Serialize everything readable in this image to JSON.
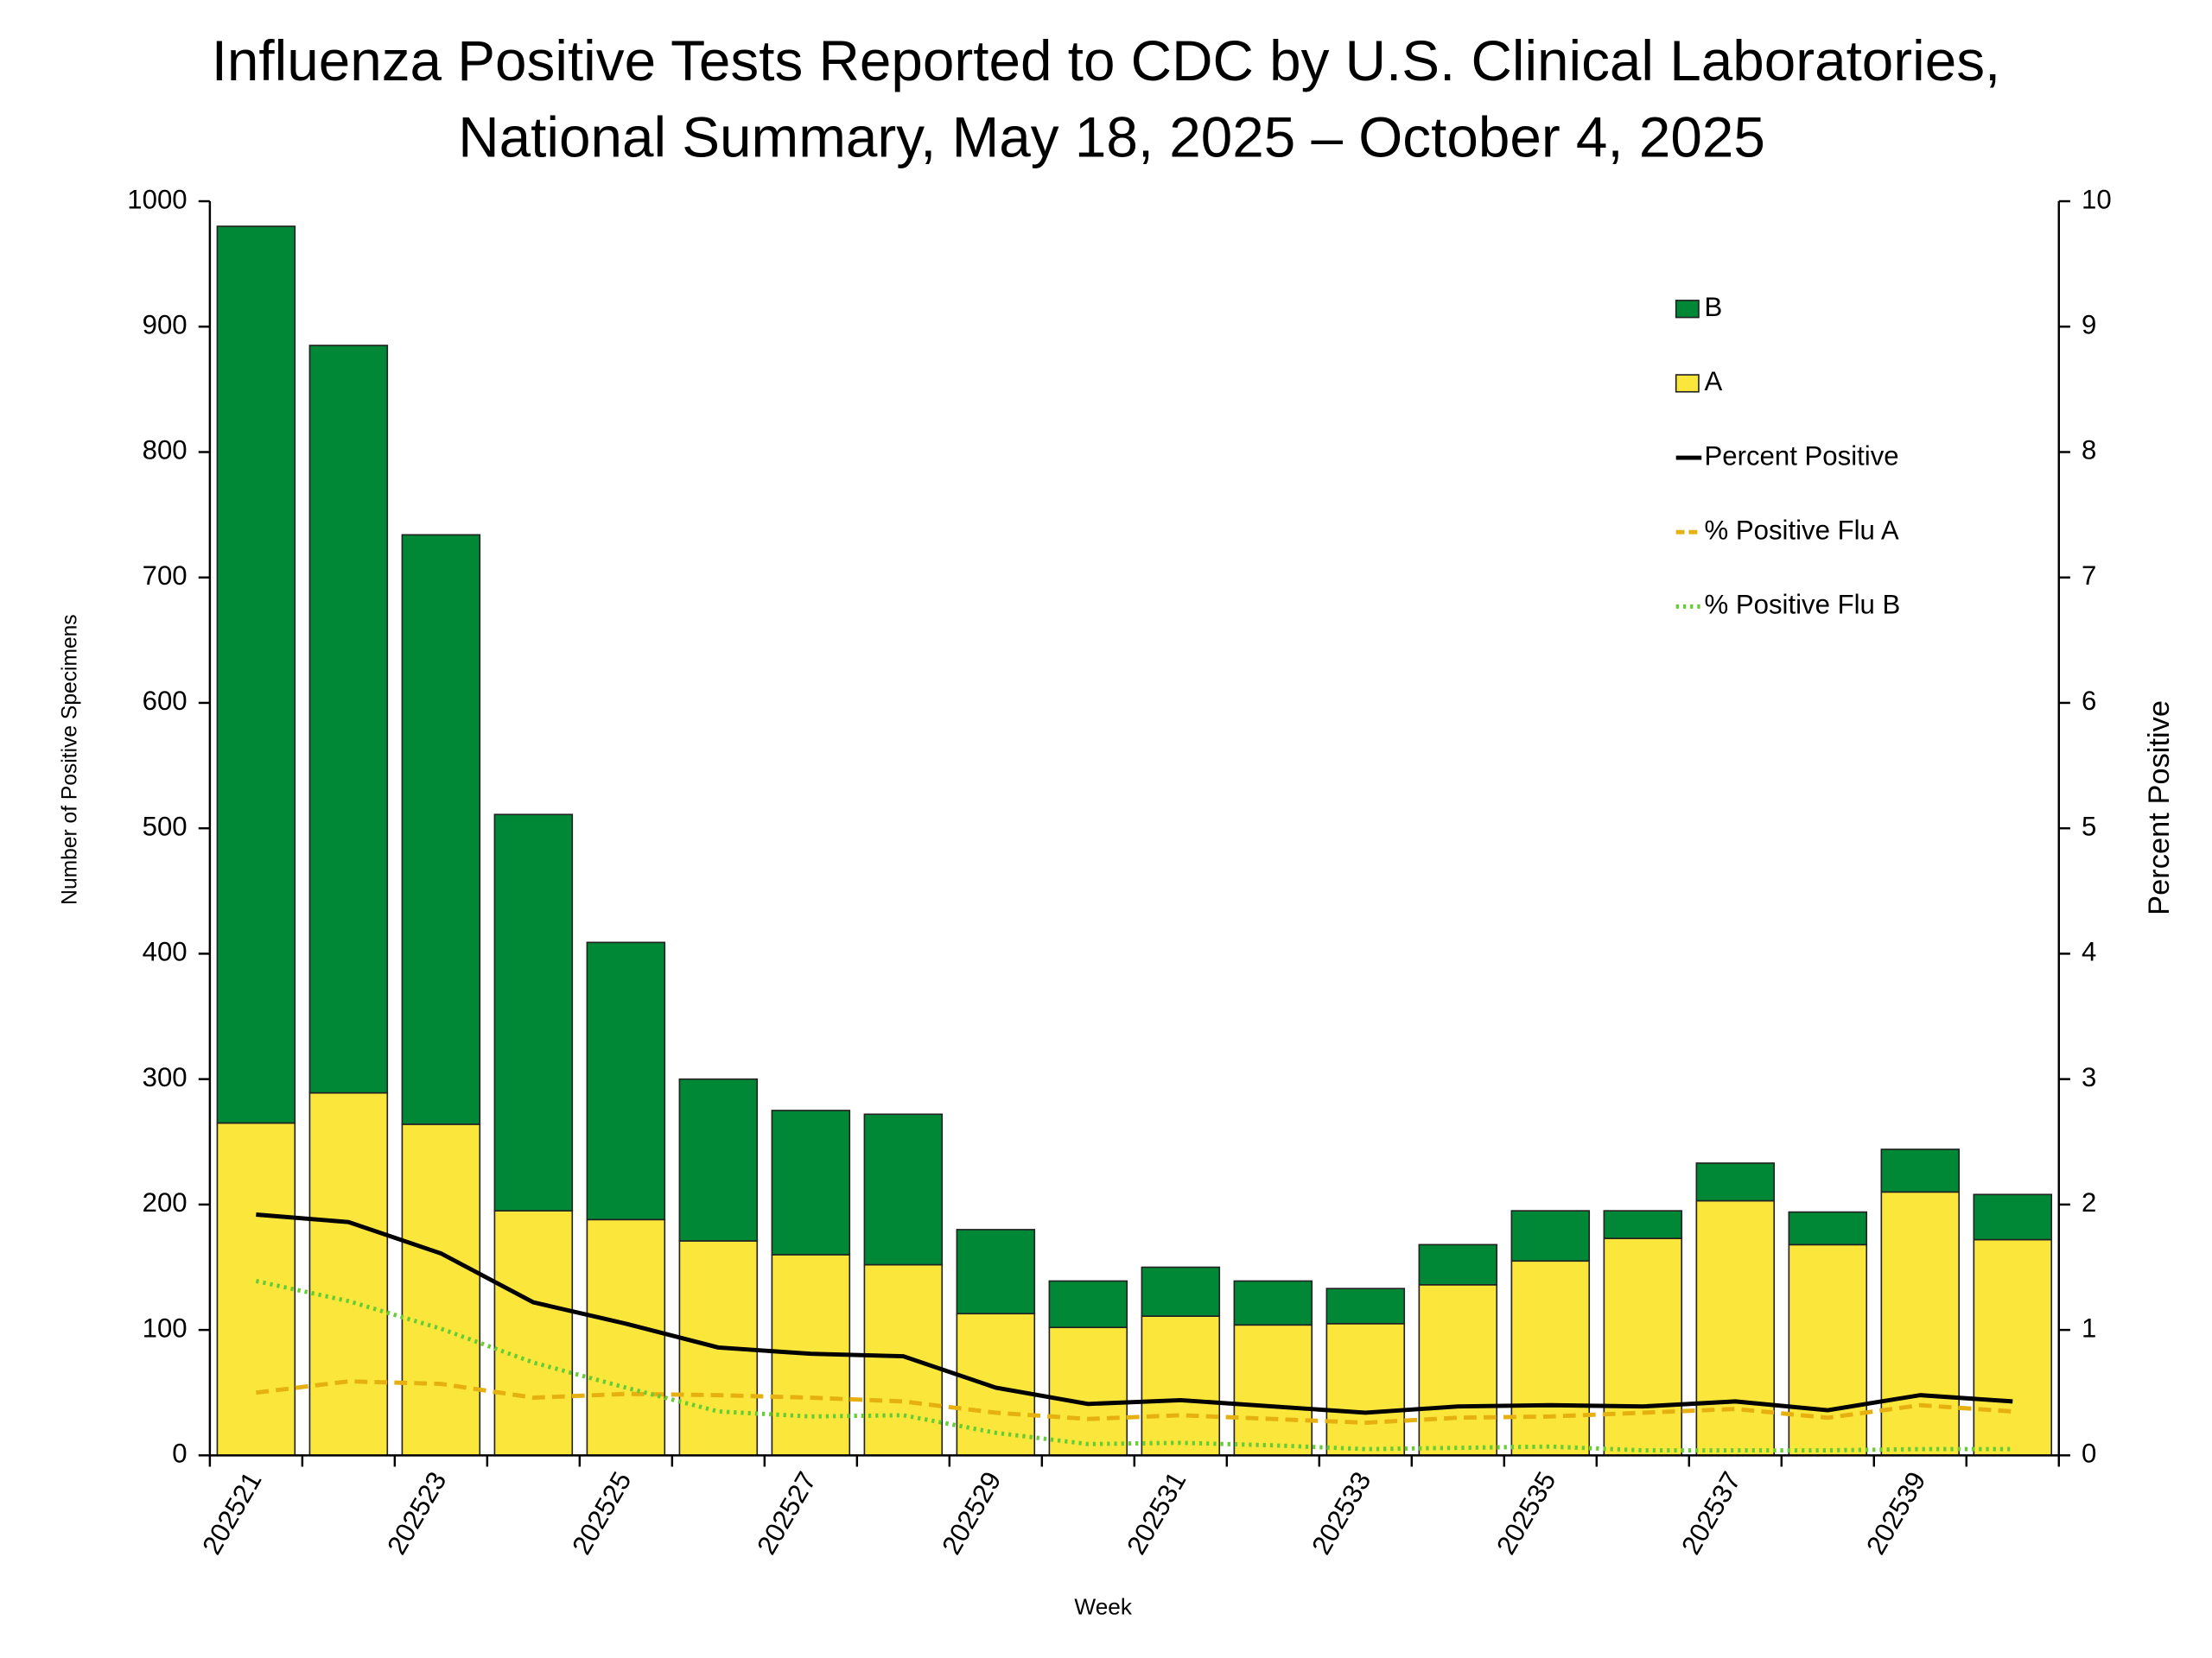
{
  "chart_data": {
    "type": "bar",
    "title": [
      "Influenza Positive Tests Reported to CDC by U.S. Clinical Laboratories,",
      "National Summary, May 18, 2025 – October 4, 2025"
    ],
    "x_label": "Week",
    "y_label": "Number of Positive Specimens",
    "y2_label": "Percent Positive",
    "categories": [
      "202521",
      null,
      "202523",
      null,
      "202525",
      null,
      "202527",
      null,
      "202529",
      null,
      "202531",
      null,
      "202533",
      null,
      "202535",
      null,
      "202537",
      null,
      "202539",
      null
    ],
    "stacked": true,
    "series": [
      {
        "name": "B",
        "type": "bar",
        "color": "#008837",
        "values": [
          715,
          596,
          470,
          316,
          221,
          129,
          115,
          120,
          67,
          37,
          39,
          35,
          28,
          32,
          40,
          22,
          30,
          26,
          34,
          36
        ]
      },
      {
        "name": "A",
        "type": "bar",
        "color": "#fbe73c",
        "values": [
          265,
          289,
          264,
          195,
          188,
          171,
          160,
          152,
          113,
          102,
          111,
          104,
          105,
          136,
          155,
          173,
          203,
          168,
          210,
          172
        ]
      },
      {
        "name": "Percent Positive",
        "type": "line",
        "axis": "y2",
        "color": "#000000",
        "dash": "solid",
        "values": [
          1.92,
          1.86,
          1.61,
          1.22,
          1.05,
          0.86,
          0.81,
          0.79,
          0.54,
          0.41,
          0.44,
          0.39,
          0.34,
          0.39,
          0.4,
          0.39,
          0.43,
          0.36,
          0.48,
          0.43
        ]
      },
      {
        "name": "% Positive Flu A",
        "type": "line",
        "axis": "y2",
        "color": "#e6b010",
        "dash": "dashed",
        "values": [
          0.5,
          0.59,
          0.57,
          0.46,
          0.49,
          0.48,
          0.46,
          0.43,
          0.34,
          0.29,
          0.32,
          0.29,
          0.26,
          0.3,
          0.31,
          0.34,
          0.37,
          0.3,
          0.4,
          0.35
        ]
      },
      {
        "name": "% Positive Flu B",
        "type": "line",
        "axis": "y2",
        "color": "#66cc33",
        "dash": "dotted",
        "values": [
          1.39,
          1.23,
          1.01,
          0.74,
          0.54,
          0.35,
          0.31,
          0.32,
          0.18,
          0.09,
          0.1,
          0.08,
          0.05,
          0.06,
          0.07,
          0.04,
          0.04,
          0.04,
          0.05,
          0.05
        ]
      }
    ],
    "ylim": [
      0,
      1000
    ],
    "yticks": [
      0,
      100,
      200,
      300,
      400,
      500,
      600,
      700,
      800,
      900,
      1000
    ],
    "y2lim": [
      0,
      10
    ],
    "y2ticks": [
      0,
      1,
      2,
      3,
      4,
      5,
      6,
      7,
      8,
      9,
      10
    ],
    "grid": false,
    "legend": "upper right"
  }
}
